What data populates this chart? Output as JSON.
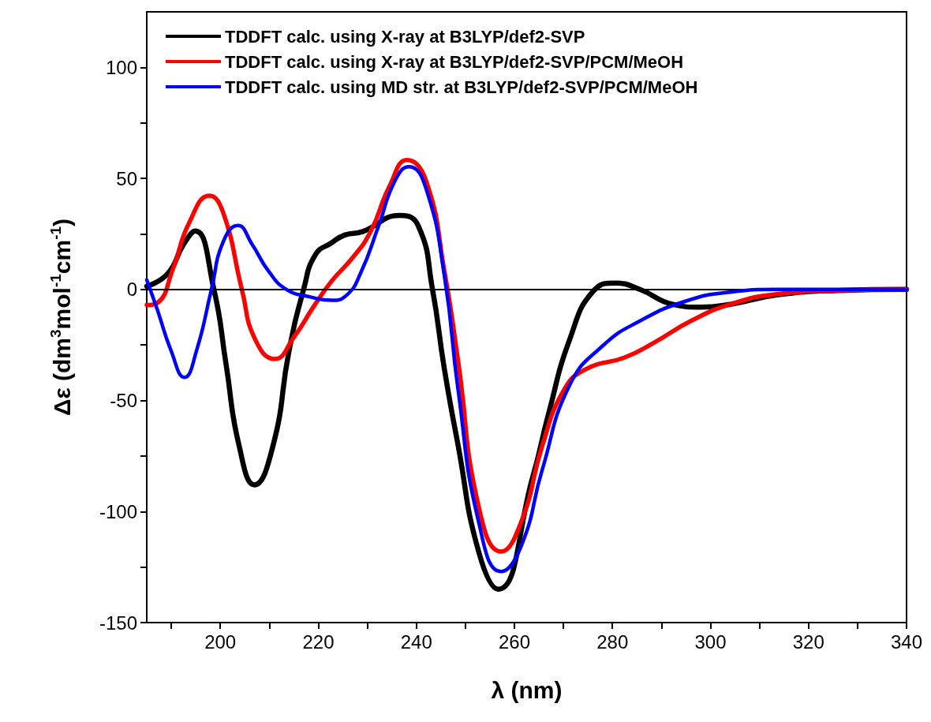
{
  "chart_data": {
    "type": "line",
    "xlabel": "λ (nm)",
    "ylabel": "Δε (dm$^{3}$mol$^{-1}$cm$^{-1}$)",
    "xlim": [
      185,
      340
    ],
    "ylim": [
      -150,
      125
    ],
    "xticks": [
      {
        "value": 190,
        "label": null
      },
      200,
      {
        "value": 210,
        "label": null
      },
      220,
      {
        "value": 230,
        "label": null
      },
      240,
      {
        "value": 250,
        "label": null
      },
      260,
      {
        "value": 270,
        "label": null
      },
      280,
      {
        "value": 290,
        "label": null
      },
      300,
      {
        "value": 310,
        "label": null
      },
      320,
      {
        "value": 330,
        "label": null
      },
      340
    ],
    "yticks": [
      -150,
      {
        "value": -125,
        "label": null
      },
      -100,
      {
        "value": -75,
        "label": null
      },
      -50,
      {
        "value": -25,
        "label": null
      },
      0,
      {
        "value": 25,
        "label": null
      },
      50,
      {
        "value": 75,
        "label": null
      },
      100
    ],
    "grid": false,
    "legend": "top left",
    "marker": "none",
    "line_style": "solid",
    "ref_lines": [
      {
        "axis": "y",
        "value": 0,
        "label": null,
        "color": "#000000"
      }
    ],
    "series": [
      {
        "name": "TDDFT calc. using X-ray at B3LYP/def2-SVP",
        "color": "#000000",
        "x": [
          185,
          189.3,
          192.5,
          194.9,
          198.7,
          201.2,
          203.8,
          207,
          210.8,
          214,
          217,
          219.4,
          222.7,
          225.4,
          229,
          236.6,
          240.4,
          243.3,
          245.7,
          248.5,
          252.7,
          256.7,
          263.8,
          266.9,
          271.3,
          276.2,
          280.6,
          285.6,
          292.3,
          298,
          304,
          313.5,
          325.8,
          340
        ],
        "values": [
          1.4,
          7.2,
          20.3,
          26.3,
          0,
          -34,
          -70,
          -88,
          -70,
          -28,
          0,
          15.6,
          21,
          24.5,
          26,
          33.3,
          28.6,
          0,
          -35.6,
          -70,
          -118,
          -135,
          -84,
          -56.6,
          -22.4,
          -0.5,
          2.9,
          0,
          -6.7,
          -8,
          -6.7,
          -2.5,
          -0.5,
          0
        ]
      },
      {
        "name": "TDDFT calc. using X-ray at B3LYP/def2-SVP/PCM/MeOH",
        "color": "#ff0000",
        "x": [
          185,
          187.2,
          190.4,
          193.6,
          197.8,
          200.6,
          204.4,
          207.1,
          211.1,
          215.1,
          218.9,
          222.7,
          227,
          230.7,
          234.5,
          238.1,
          242,
          245.8,
          248.5,
          252.7,
          257.3,
          261.4,
          265.7,
          270,
          274.4,
          282.5,
          288.6,
          296,
          304,
          313.5,
          325.8,
          340
        ],
        "values": [
          -7,
          -6,
          9.6,
          29.8,
          42.2,
          34.5,
          0,
          -22.4,
          -31.3,
          -21.2,
          -8.2,
          3.7,
          14.3,
          26.2,
          46.4,
          58.3,
          48.8,
          7.2,
          -31.9,
          -97.7,
          -118,
          -104.6,
          -70.3,
          -45.7,
          -36.1,
          -30.6,
          -23.8,
          -14.2,
          -6.7,
          -2.1,
          -0.5,
          0
        ]
      },
      {
        "name": "TDDFT calc. using MD str. at B3LYP/def2-SVP/PCM/MeOH",
        "color": "#0000ff",
        "x": [
          185,
          187.2,
          189.9,
          192.7,
          195.2,
          198.2,
          200.6,
          203.6,
          206.5,
          209.8,
          213.5,
          218.4,
          222.7,
          225.9,
          228.6,
          232.3,
          235.6,
          238.5,
          242,
          245.8,
          248.5,
          252.7,
          257.3,
          261.4,
          265.7,
          271.3,
          278.1,
          285.6,
          294.9,
          304,
          313.5,
          340
        ],
        "values": [
          4.3,
          -9.4,
          -27.2,
          -39.6,
          -27.2,
          0,
          21.5,
          28.8,
          20.3,
          8.4,
          0,
          -3.4,
          -4.9,
          -2.3,
          7.2,
          28.6,
          48.8,
          55.3,
          45.2,
          4.9,
          -45,
          -104.6,
          -127,
          -115.5,
          -81,
          -43,
          -25.2,
          -14.2,
          -5.3,
          -1.2,
          0,
          0
        ]
      }
    ]
  }
}
